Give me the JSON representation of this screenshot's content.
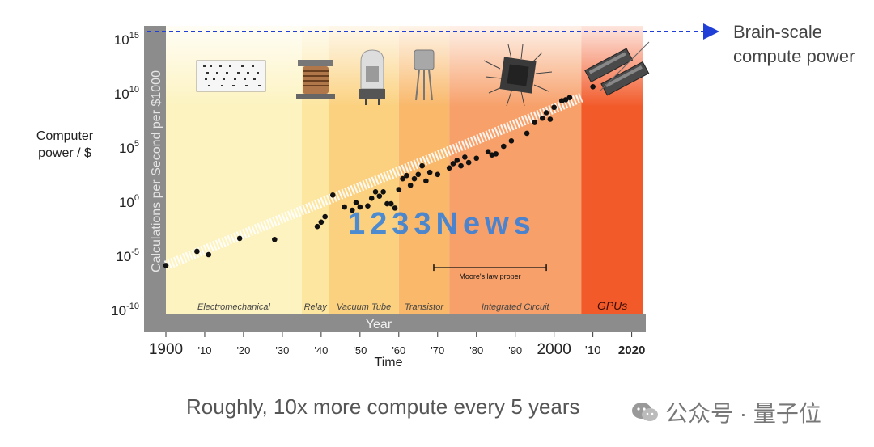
{
  "chart_data": {
    "type": "scatter",
    "title": "",
    "xlabel_inner": "Year",
    "xlabel": "Time",
    "ylabel_inner": "Calculations per Second per $1000",
    "ylabel": "Computer power / $",
    "log_y": true,
    "xlim": [
      1900,
      2023
    ],
    "ylim_exponent": [
      -10,
      15
    ],
    "y_ticks": [
      {
        "base": "10",
        "exp": "15",
        "value": 15
      },
      {
        "base": "10",
        "exp": "10",
        "value": 10
      },
      {
        "base": "10",
        "exp": "5",
        "value": 5
      },
      {
        "base": "10",
        "exp": "0",
        "value": 0
      },
      {
        "base": "10",
        "exp": "-5",
        "value": -5
      },
      {
        "base": "10",
        "exp": "-10",
        "value": -10
      }
    ],
    "x_ticks": [
      {
        "label": "1900",
        "value": 1900,
        "big": true
      },
      {
        "label": "'10",
        "value": 1910,
        "big": false
      },
      {
        "label": "'20",
        "value": 1920,
        "big": false
      },
      {
        "label": "'30",
        "value": 1930,
        "big": false
      },
      {
        "label": "'40",
        "value": 1940,
        "big": false
      },
      {
        "label": "'50",
        "value": 1950,
        "big": false
      },
      {
        "label": "'60",
        "value": 1960,
        "big": false
      },
      {
        "label": "'70",
        "value": 1970,
        "big": false
      },
      {
        "label": "'80",
        "value": 1980,
        "big": false
      },
      {
        "label": "'90",
        "value": 1990,
        "big": false
      },
      {
        "label": "2000",
        "value": 2000,
        "big": true
      },
      {
        "label": "'10",
        "value": 2010,
        "big": true
      },
      {
        "label": "2020",
        "value": 2020,
        "big": true
      }
    ],
    "eras": [
      {
        "name": "Electromechanical",
        "start": 1900,
        "end": 1935,
        "color": "#fdf3c0"
      },
      {
        "name": "Relay",
        "start": 1935,
        "end": 1942,
        "color": "#fde6a0"
      },
      {
        "name": "Vacuum Tube",
        "start": 1942,
        "end": 1960,
        "color": "#fbd17f"
      },
      {
        "name": "Transistor",
        "start": 1960,
        "end": 1973,
        "color": "#f9b86a"
      },
      {
        "name": "Integrated Circuit",
        "start": 1973,
        "end": 2007,
        "color": "#f7a06a"
      },
      {
        "name": "GPUs",
        "start": 2007,
        "end": 2023,
        "color": "#f25a2a"
      }
    ],
    "trend_line": {
      "start_year": 1900,
      "start_exp": -6,
      "end_year": 2007,
      "end_exp": 9.5
    },
    "points": [
      {
        "year": 1900,
        "exp": -6.0
      },
      {
        "year": 1908,
        "exp": -4.7
      },
      {
        "year": 1911,
        "exp": -5.0
      },
      {
        "year": 1919,
        "exp": -3.5
      },
      {
        "year": 1928,
        "exp": -3.6
      },
      {
        "year": 1939,
        "exp": -2.4
      },
      {
        "year": 1940,
        "exp": -2.0
      },
      {
        "year": 1941,
        "exp": -1.5
      },
      {
        "year": 1943,
        "exp": 0.5
      },
      {
        "year": 1946,
        "exp": -0.6
      },
      {
        "year": 1948,
        "exp": -0.9
      },
      {
        "year": 1949,
        "exp": -0.2
      },
      {
        "year": 1950,
        "exp": -0.6
      },
      {
        "year": 1952,
        "exp": -0.5
      },
      {
        "year": 1953,
        "exp": 0.2
      },
      {
        "year": 1954,
        "exp": 0.8
      },
      {
        "year": 1955,
        "exp": 0.4
      },
      {
        "year": 1956,
        "exp": 0.8
      },
      {
        "year": 1957,
        "exp": -0.3
      },
      {
        "year": 1958,
        "exp": -0.3
      },
      {
        "year": 1959,
        "exp": -0.7
      },
      {
        "year": 1960,
        "exp": 1.0
      },
      {
        "year": 1961,
        "exp": 2.0
      },
      {
        "year": 1962,
        "exp": 2.3
      },
      {
        "year": 1963,
        "exp": 1.4
      },
      {
        "year": 1964,
        "exp": 2.0
      },
      {
        "year": 1965,
        "exp": 2.4
      },
      {
        "year": 1966,
        "exp": 3.2
      },
      {
        "year": 1967,
        "exp": 1.8
      },
      {
        "year": 1968,
        "exp": 2.6
      },
      {
        "year": 1970,
        "exp": 2.4
      },
      {
        "year": 1973,
        "exp": 3.0
      },
      {
        "year": 1974,
        "exp": 3.4
      },
      {
        "year": 1975,
        "exp": 3.7
      },
      {
        "year": 1976,
        "exp": 3.2
      },
      {
        "year": 1977,
        "exp": 4.0
      },
      {
        "year": 1978,
        "exp": 3.5
      },
      {
        "year": 1980,
        "exp": 3.9
      },
      {
        "year": 1983,
        "exp": 4.5
      },
      {
        "year": 1984,
        "exp": 4.2
      },
      {
        "year": 1985,
        "exp": 4.3
      },
      {
        "year": 1987,
        "exp": 5.0
      },
      {
        "year": 1989,
        "exp": 5.5
      },
      {
        "year": 1993,
        "exp": 6.2
      },
      {
        "year": 1995,
        "exp": 7.2
      },
      {
        "year": 1997,
        "exp": 7.6
      },
      {
        "year": 1998,
        "exp": 8.1
      },
      {
        "year": 1999,
        "exp": 7.5
      },
      {
        "year": 2000,
        "exp": 8.6
      },
      {
        "year": 2002,
        "exp": 9.2
      },
      {
        "year": 2003,
        "exp": 9.3
      },
      {
        "year": 2004,
        "exp": 9.5
      },
      {
        "year": 2010,
        "exp": 10.5
      }
    ],
    "moores_law": {
      "label": "Moore's law proper",
      "start": 1969,
      "end": 1998,
      "exp": -6.2
    },
    "brain_scale": {
      "label_line1": "Brain-scale",
      "label_line2": "compute power",
      "exp": 15
    }
  },
  "watermark_overlay": "1233News",
  "caption": "Roughly, 10x more compute every 5 years",
  "watermark": "公众号 · 量子位",
  "colors": {
    "axis_bar": "#8c8c8c",
    "brain_line": "#1f3fd6",
    "points": "#111111",
    "overlay_text": "#2f7fe0"
  },
  "icons": [
    "punch-card-icon",
    "relay-icon",
    "vacuum-tube-icon",
    "transistor-icon",
    "chip-icon",
    "gpu-card-icon",
    "wechat-icon"
  ]
}
